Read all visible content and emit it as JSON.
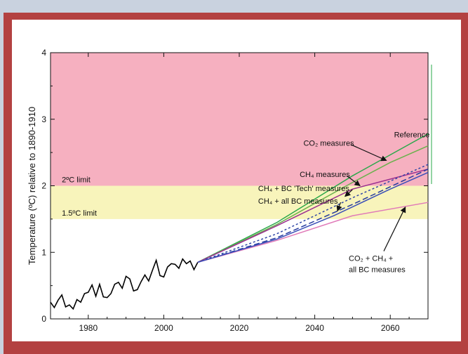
{
  "chart_data": {
    "type": "line",
    "ylabel": "Temperature (ºC) relative to 1890-1910",
    "xlim": [
      1970,
      2070
    ],
    "ylim": [
      0,
      4
    ],
    "x_ticks": [
      1980,
      2000,
      2020,
      2040,
      2060
    ],
    "y_ticks": [
      0,
      1,
      2,
      3,
      4
    ],
    "zones": [
      {
        "label": "2ºC limit",
        "y_from": 2.0,
        "y_to": 4.0,
        "color": "#f6b0c0"
      },
      {
        "label": "1.5ºC limit",
        "y_from": 1.5,
        "y_to": 2.0,
        "color": "#f8f4bb"
      }
    ],
    "historical": {
      "color": "#000000",
      "points": [
        [
          1970,
          0.25
        ],
        [
          1971,
          0.17
        ],
        [
          1972,
          0.28
        ],
        [
          1973,
          0.36
        ],
        [
          1974,
          0.18
        ],
        [
          1975,
          0.21
        ],
        [
          1976,
          0.15
        ],
        [
          1977,
          0.29
        ],
        [
          1978,
          0.25
        ],
        [
          1979,
          0.38
        ],
        [
          1980,
          0.4
        ],
        [
          1981,
          0.51
        ],
        [
          1982,
          0.34
        ],
        [
          1983,
          0.52
        ],
        [
          1984,
          0.33
        ],
        [
          1985,
          0.32
        ],
        [
          1986,
          0.38
        ],
        [
          1987,
          0.52
        ],
        [
          1988,
          0.55
        ],
        [
          1989,
          0.46
        ],
        [
          1990,
          0.64
        ],
        [
          1991,
          0.6
        ],
        [
          1992,
          0.42
        ],
        [
          1993,
          0.44
        ],
        [
          1994,
          0.56
        ],
        [
          1995,
          0.66
        ],
        [
          1996,
          0.57
        ],
        [
          1997,
          0.73
        ],
        [
          1998,
          0.88
        ],
        [
          1999,
          0.65
        ],
        [
          2000,
          0.63
        ],
        [
          2001,
          0.78
        ],
        [
          2002,
          0.83
        ],
        [
          2003,
          0.82
        ],
        [
          2004,
          0.76
        ],
        [
          2005,
          0.9
        ],
        [
          2006,
          0.83
        ],
        [
          2007,
          0.87
        ],
        [
          2008,
          0.74
        ],
        [
          2009,
          0.85
        ]
      ]
    },
    "series": [
      {
        "name": "Reference",
        "color": "#2aa84a",
        "dash": "",
        "x": [
          2009,
          2030,
          2050,
          2070
        ],
        "y": [
          0.85,
          1.45,
          2.15,
          2.78
        ]
      },
      {
        "name": "CO₂ measures",
        "color": "#6ab04c",
        "dash": "",
        "x": [
          2009,
          2030,
          2050,
          2060,
          2070
        ],
        "y": [
          0.85,
          1.42,
          2.05,
          2.35,
          2.6
        ]
      },
      {
        "name": "CH₄ measures",
        "color": "#9b2f8f",
        "dash": "",
        "x": [
          2009,
          2030,
          2050,
          2070
        ],
        "y": [
          0.85,
          1.4,
          1.95,
          2.25
        ]
      },
      {
        "name": "CH₄ + BC 'Tech' measures",
        "color": "#2f46a6",
        "dash": "3,3",
        "x": [
          2009,
          2030,
          2050,
          2070
        ],
        "y": [
          0.85,
          1.28,
          1.82,
          2.32
        ]
      },
      {
        "name": "CH₄ + all BC measures",
        "color": "#243a9e",
        "dash": "8,4",
        "x": [
          2009,
          2030,
          2050,
          2070
        ],
        "y": [
          0.85,
          1.22,
          1.72,
          2.25
        ]
      },
      {
        "name": "CO₂ + CH₄ + all BC measures",
        "color": "#e07ab8",
        "dash": "",
        "x": [
          2009,
          2030,
          2050,
          2070
        ],
        "y": [
          0.85,
          1.18,
          1.55,
          1.75
        ]
      },
      {
        "name": "",
        "color": "#3b4fb8",
        "dash": "",
        "x": [
          2009,
          2030,
          2045,
          2060,
          2070
        ],
        "y": [
          0.85,
          1.2,
          1.55,
          1.95,
          2.2
        ]
      }
    ],
    "annotations": [
      {
        "text": "Reference",
        "tx": 2061,
        "ty": 2.73,
        "ax": null,
        "ay": null
      },
      {
        "text": "CO₂ measures",
        "tx": 2037,
        "ty": 2.6,
        "ax": 2059,
        "ay": 2.38
      },
      {
        "text": "CH₄ measures",
        "tx": 2036,
        "ty": 2.13,
        "ax": 2052,
        "ay": 2.0
      },
      {
        "text": "CH₄ + BC 'Tech' measures",
        "tx": 2025,
        "ty": 1.92,
        "ax": 2048,
        "ay": 1.84
      },
      {
        "text": "CH₄ + all BC measures",
        "tx": 2025,
        "ty": 1.73,
        "ax": 2046,
        "ay": 1.62
      },
      {
        "text": "CO₂ + CH₄ +",
        "tx": 2049,
        "ty": 0.87,
        "ax": 2064,
        "ay": 1.68
      },
      {
        "text": "all BC measures",
        "tx": 2049,
        "ty": 0.7,
        "ax": null,
        "ay": null
      }
    ]
  }
}
